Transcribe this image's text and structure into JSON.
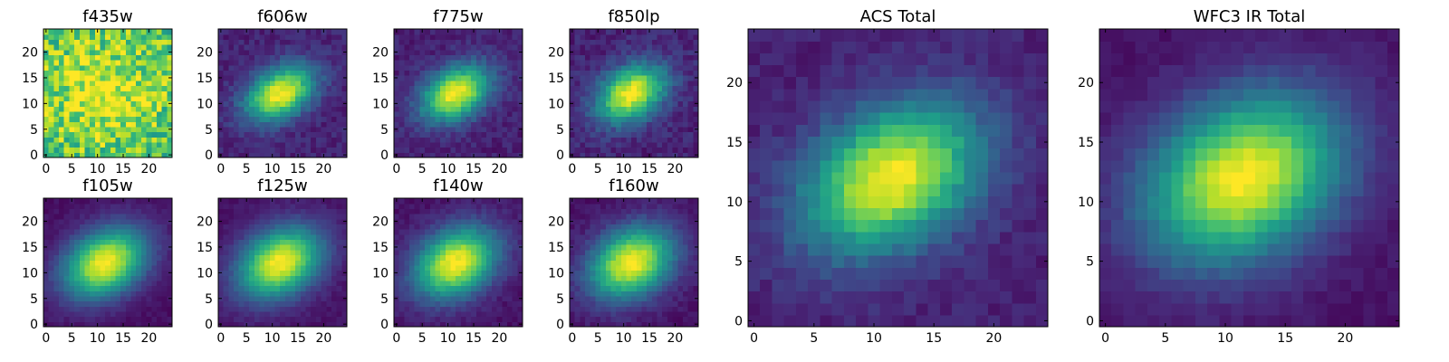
{
  "figure": {
    "colors": {
      "background": "#ffffff",
      "frame": "#000000",
      "colormap": "viridis",
      "colormap_stops": [
        "#440154",
        "#482878",
        "#3e4989",
        "#31688e",
        "#26828e",
        "#1f9e89",
        "#35b779",
        "#6ece58",
        "#b5de2b",
        "#fde725"
      ]
    }
  },
  "chart_data": [
    {
      "type": "heatmap",
      "title": "f435w",
      "size": 25,
      "xlim": [
        0,
        24
      ],
      "ylim": [
        0,
        24
      ],
      "xticks": [
        0,
        5,
        10,
        15,
        20
      ],
      "yticks": [
        0,
        5,
        10,
        15,
        20
      ],
      "center": [
        11,
        12
      ],
      "sigma_major": 7.0,
      "sigma_minor": 6.0,
      "angle_deg": 10,
      "peak_value": 0.98,
      "background_value": 0.72,
      "noise": 0.22,
      "seed": 11
    },
    {
      "type": "heatmap",
      "title": "f606w",
      "size": 25,
      "xlim": [
        0,
        24
      ],
      "ylim": [
        0,
        24
      ],
      "xticks": [
        0,
        5,
        10,
        15,
        20
      ],
      "yticks": [
        0,
        5,
        10,
        15,
        20
      ],
      "center": [
        11.5,
        12
      ],
      "sigma_major": 5.0,
      "sigma_minor": 3.2,
      "angle_deg": 30,
      "peak_value": 1.0,
      "background_value": 0.1,
      "noise": 0.06,
      "seed": 22
    },
    {
      "type": "heatmap",
      "title": "f775w",
      "size": 25,
      "xlim": [
        0,
        24
      ],
      "ylim": [
        0,
        24
      ],
      "xticks": [
        0,
        5,
        10,
        15,
        20
      ],
      "yticks": [
        0,
        5,
        10,
        15,
        20
      ],
      "center": [
        11.5,
        12
      ],
      "sigma_major": 5.0,
      "sigma_minor": 3.3,
      "angle_deg": 30,
      "peak_value": 1.0,
      "background_value": 0.09,
      "noise": 0.06,
      "seed": 33
    },
    {
      "type": "heatmap",
      "title": "f850lp",
      "size": 25,
      "xlim": [
        0,
        24
      ],
      "ylim": [
        0,
        24
      ],
      "xticks": [
        0,
        5,
        10,
        15,
        20
      ],
      "yticks": [
        0,
        5,
        10,
        15,
        20
      ],
      "center": [
        11.5,
        12
      ],
      "sigma_major": 5.0,
      "sigma_minor": 3.4,
      "angle_deg": 30,
      "peak_value": 1.0,
      "background_value": 0.1,
      "noise": 0.07,
      "seed": 44
    },
    {
      "type": "heatmap",
      "title": "f105w",
      "size": 25,
      "xlim": [
        0,
        24
      ],
      "ylim": [
        0,
        24
      ],
      "xticks": [
        0,
        5,
        10,
        15,
        20
      ],
      "yticks": [
        0,
        5,
        10,
        15,
        20
      ],
      "center": [
        11.5,
        12
      ],
      "sigma_major": 6.0,
      "sigma_minor": 4.2,
      "angle_deg": 30,
      "peak_value": 1.0,
      "background_value": 0.04,
      "noise": 0.03,
      "seed": 55
    },
    {
      "type": "heatmap",
      "title": "f125w",
      "size": 25,
      "xlim": [
        0,
        24
      ],
      "ylim": [
        0,
        24
      ],
      "xticks": [
        0,
        5,
        10,
        15,
        20
      ],
      "yticks": [
        0,
        5,
        10,
        15,
        20
      ],
      "center": [
        11.5,
        12
      ],
      "sigma_major": 6.0,
      "sigma_minor": 4.3,
      "angle_deg": 30,
      "peak_value": 1.0,
      "background_value": 0.05,
      "noise": 0.03,
      "seed": 66
    },
    {
      "type": "heatmap",
      "title": "f140w",
      "size": 25,
      "xlim": [
        0,
        24
      ],
      "ylim": [
        0,
        24
      ],
      "xticks": [
        0,
        5,
        10,
        15,
        20
      ],
      "yticks": [
        0,
        5,
        10,
        15,
        20
      ],
      "center": [
        11.5,
        12
      ],
      "sigma_major": 6.0,
      "sigma_minor": 4.3,
      "angle_deg": 30,
      "peak_value": 1.0,
      "background_value": 0.05,
      "noise": 0.04,
      "seed": 77
    },
    {
      "type": "heatmap",
      "title": "f160w",
      "size": 25,
      "xlim": [
        0,
        24
      ],
      "ylim": [
        0,
        24
      ],
      "xticks": [
        0,
        5,
        10,
        15,
        20
      ],
      "yticks": [
        0,
        5,
        10,
        15,
        20
      ],
      "center": [
        11.5,
        12
      ],
      "sigma_major": 6.0,
      "sigma_minor": 4.4,
      "angle_deg": 30,
      "peak_value": 1.0,
      "background_value": 0.05,
      "noise": 0.04,
      "seed": 88
    },
    {
      "type": "heatmap",
      "title": "ACS Total",
      "size": 25,
      "xlim": [
        0,
        24
      ],
      "ylim": [
        0,
        24
      ],
      "xticks": [
        0,
        5,
        10,
        15,
        20
      ],
      "yticks": [
        0,
        5,
        10,
        15,
        20
      ],
      "center": [
        11.5,
        12
      ],
      "sigma_major": 5.5,
      "sigma_minor": 3.8,
      "angle_deg": 30,
      "peak_value": 1.0,
      "background_value": 0.09,
      "noise": 0.05,
      "seed": 99
    },
    {
      "type": "heatmap",
      "title": "WFC3 IR Total",
      "size": 25,
      "xlim": [
        0,
        24
      ],
      "ylim": [
        0,
        24
      ],
      "xticks": [
        0,
        5,
        10,
        15,
        20
      ],
      "yticks": [
        0,
        5,
        10,
        15,
        20
      ],
      "center": [
        11.5,
        12
      ],
      "sigma_major": 6.0,
      "sigma_minor": 4.4,
      "angle_deg": 30,
      "peak_value": 1.0,
      "background_value": 0.05,
      "noise": 0.03,
      "seed": 111
    }
  ]
}
